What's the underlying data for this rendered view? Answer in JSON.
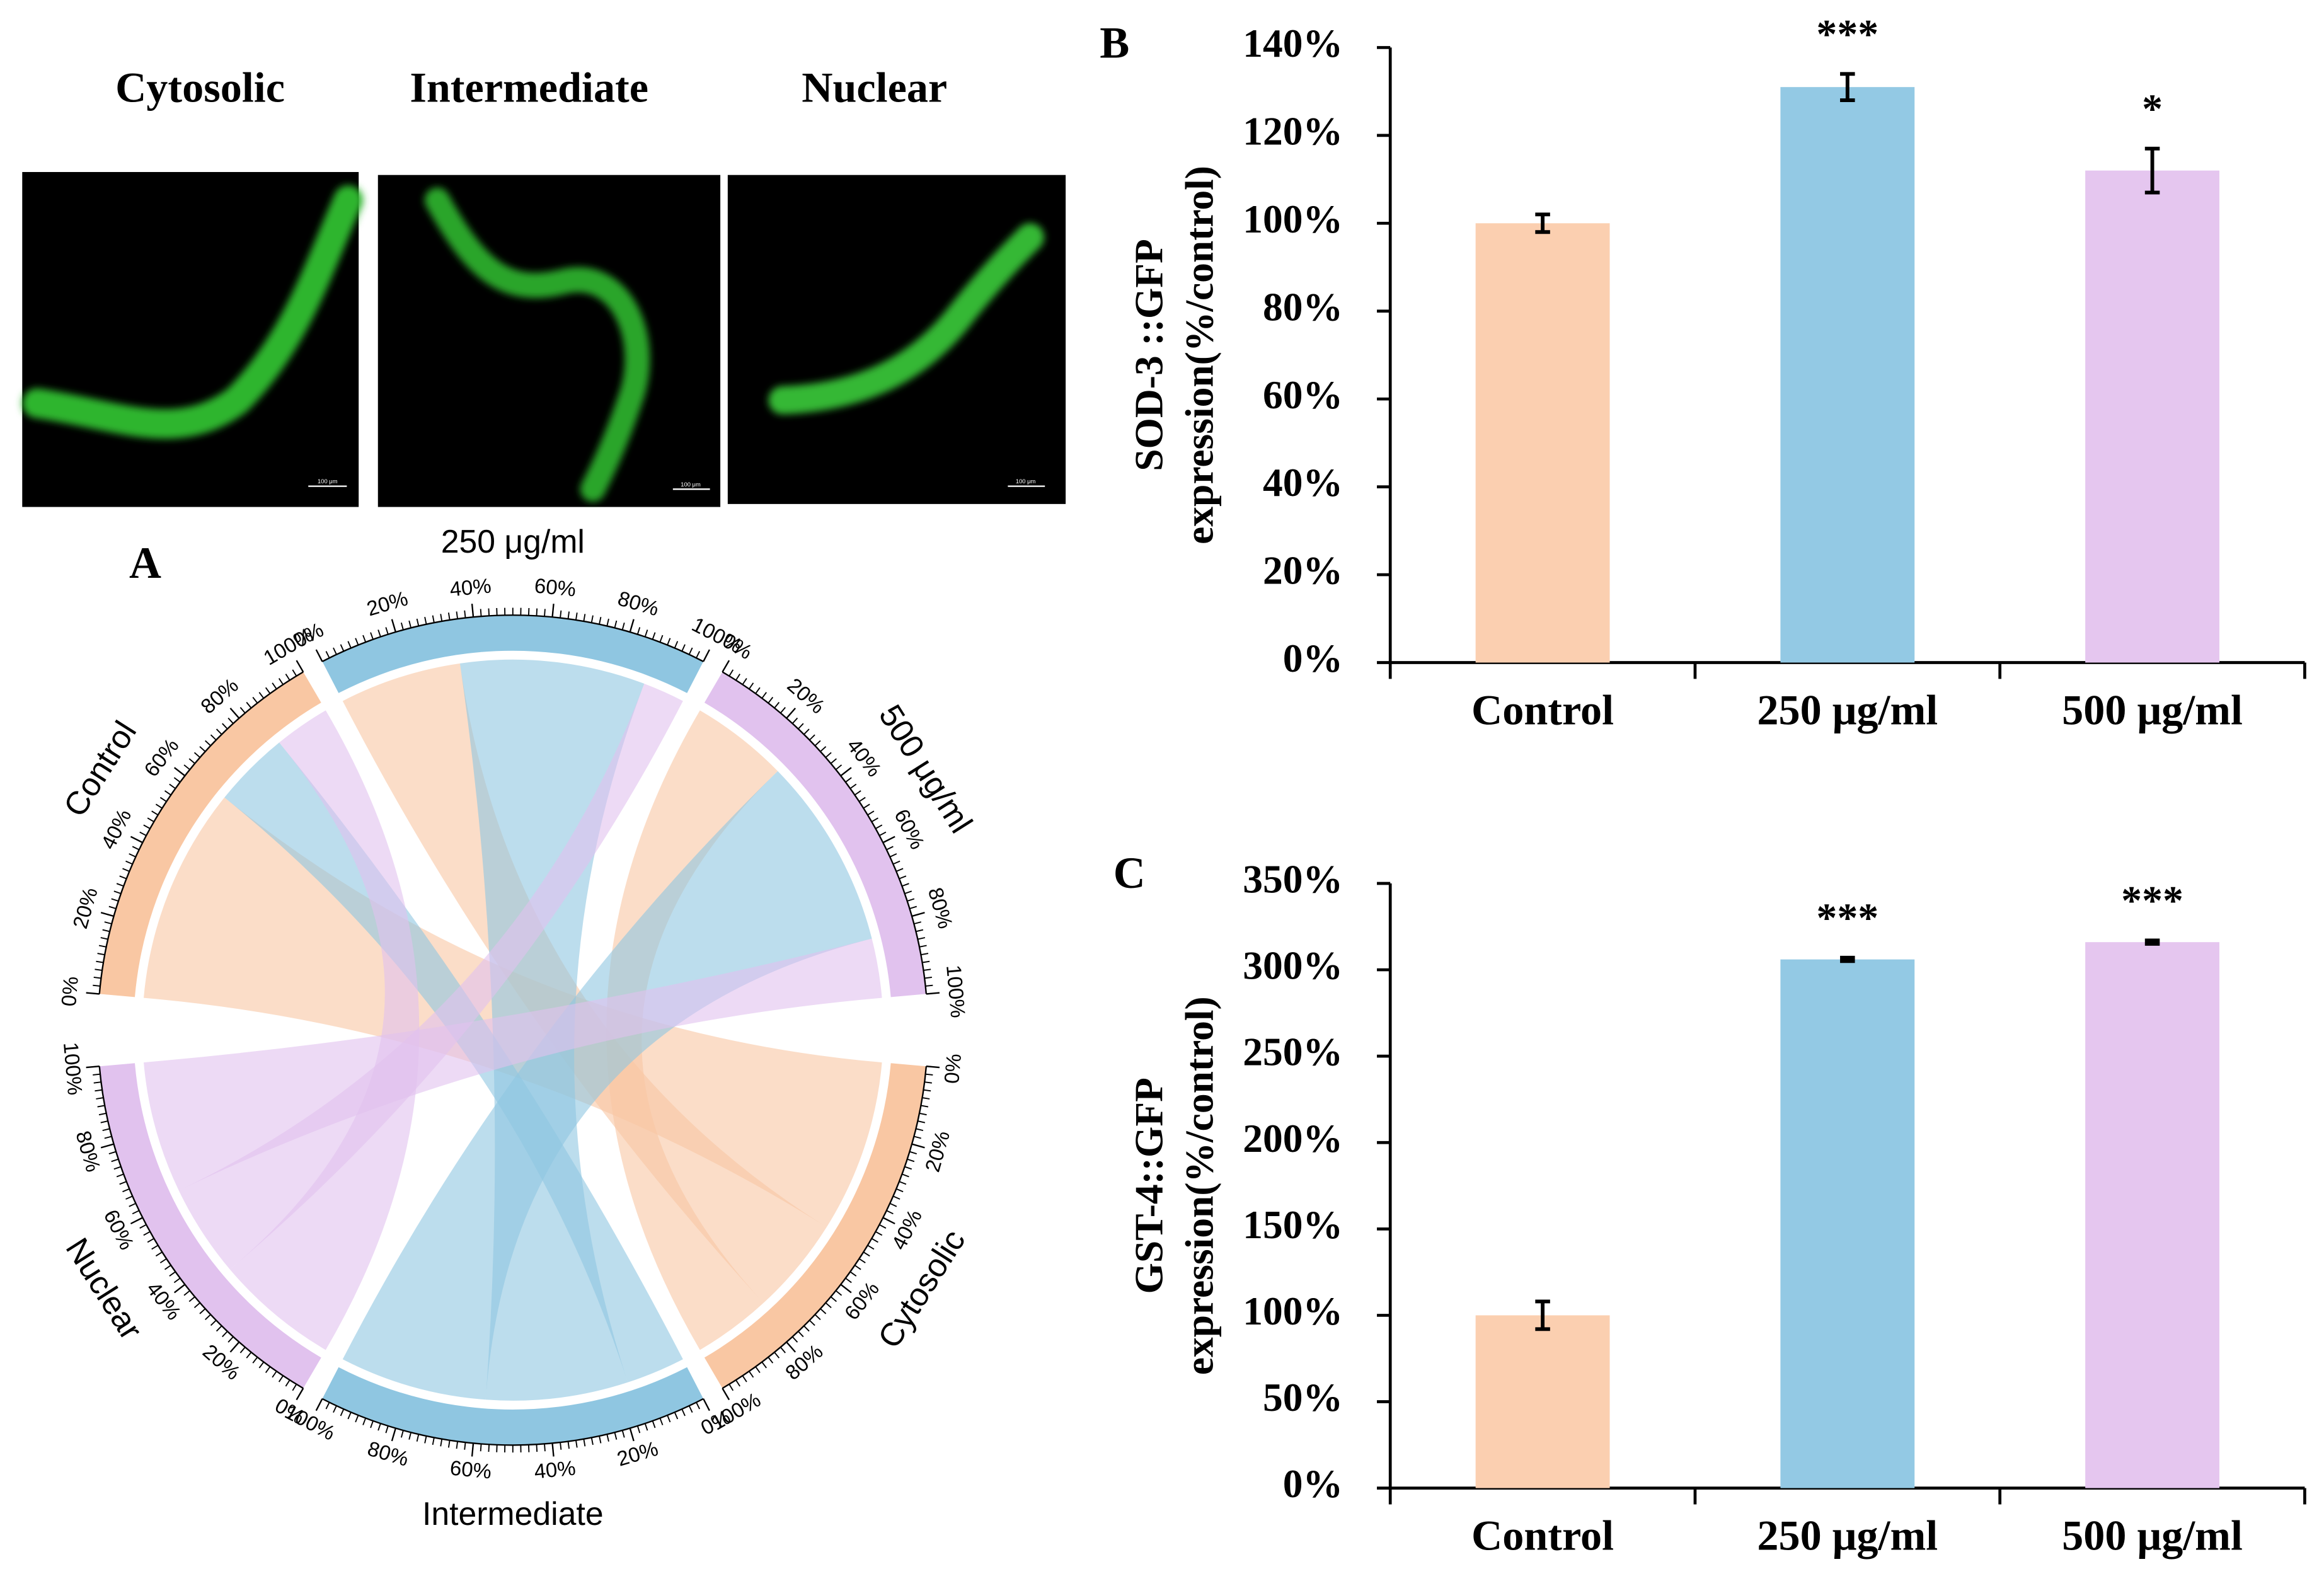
{
  "images": {
    "labels": [
      "Cytosolic",
      "Intermediate",
      "Nuclear"
    ],
    "scale_bar": "100 μm"
  },
  "chart_data": [
    {
      "type": "chord",
      "panel": "A",
      "series": [
        {
          "name": "Control",
          "color": "#f9c7a3",
          "values": [
            62,
            22,
            16
          ]
        },
        {
          "name": "250 μg/ml",
          "color": "#8fc6e1",
          "values": [
            35,
            53,
            12
          ]
        },
        {
          "name": "500 μg/ml",
          "color": "#e1c2ee",
          "values": [
            28,
            55,
            17
          ]
        }
      ],
      "targets": [
        {
          "name": "Cytosolic",
          "color": "#f9c7a3"
        },
        {
          "name": "Intermediate",
          "color": "#8fc6e1"
        },
        {
          "name": "Nuclear",
          "color": "#e1c2ee"
        }
      ],
      "ticks": [
        {
          "value": 0,
          "label": "0%"
        },
        {
          "value": 20,
          "label": "20%"
        },
        {
          "value": 40,
          "label": "40%"
        },
        {
          "value": 60,
          "label": "60%"
        },
        {
          "value": 80,
          "label": "80%"
        },
        {
          "value": 100,
          "label": "100%"
        }
      ]
    },
    {
      "type": "bar",
      "panel": "B",
      "ylabel": [
        "SOD-3 ::GFP",
        "expression(%/control)"
      ],
      "categories": [
        "Control",
        "250 μg/ml",
        "500 μg/ml"
      ],
      "values": [
        100,
        131,
        112
      ],
      "errors": [
        2,
        3,
        5
      ],
      "annotations": [
        null,
        "***",
        "*"
      ],
      "colors": [
        "#fbcfb0",
        "#93c9e4",
        "#e5c6ef"
      ],
      "ylim": [
        0,
        140
      ],
      "yticks": [
        {
          "value": 0,
          "label": "0%"
        },
        {
          "value": 20,
          "label": "20%"
        },
        {
          "value": 40,
          "label": "40%"
        },
        {
          "value": 60,
          "label": "60%"
        },
        {
          "value": 80,
          "label": "80%"
        },
        {
          "value": 100,
          "label": "100%"
        },
        {
          "value": 120,
          "label": "120%"
        },
        {
          "value": 140,
          "label": "140%"
        }
      ]
    },
    {
      "type": "bar",
      "panel": "C",
      "ylabel": [
        "GST-4::GFP",
        "expression(%/control)"
      ],
      "categories": [
        "Control",
        "250 μg/ml",
        "500 μg/ml"
      ],
      "values": [
        100,
        306,
        316
      ],
      "errors": [
        8,
        1,
        1
      ],
      "annotations": [
        null,
        "***",
        "***"
      ],
      "colors": [
        "#fbcfb0",
        "#93c9e4",
        "#e5c6ef"
      ],
      "ylim": [
        0,
        350
      ],
      "yticks": [
        {
          "value": 0,
          "label": "0%"
        },
        {
          "value": 50,
          "label": "50%"
        },
        {
          "value": 100,
          "label": "100%"
        },
        {
          "value": 150,
          "label": "150%"
        },
        {
          "value": 200,
          "label": "200%"
        },
        {
          "value": 250,
          "label": "250%"
        },
        {
          "value": 300,
          "label": "300%"
        },
        {
          "value": 350,
          "label": "350%"
        }
      ]
    }
  ]
}
